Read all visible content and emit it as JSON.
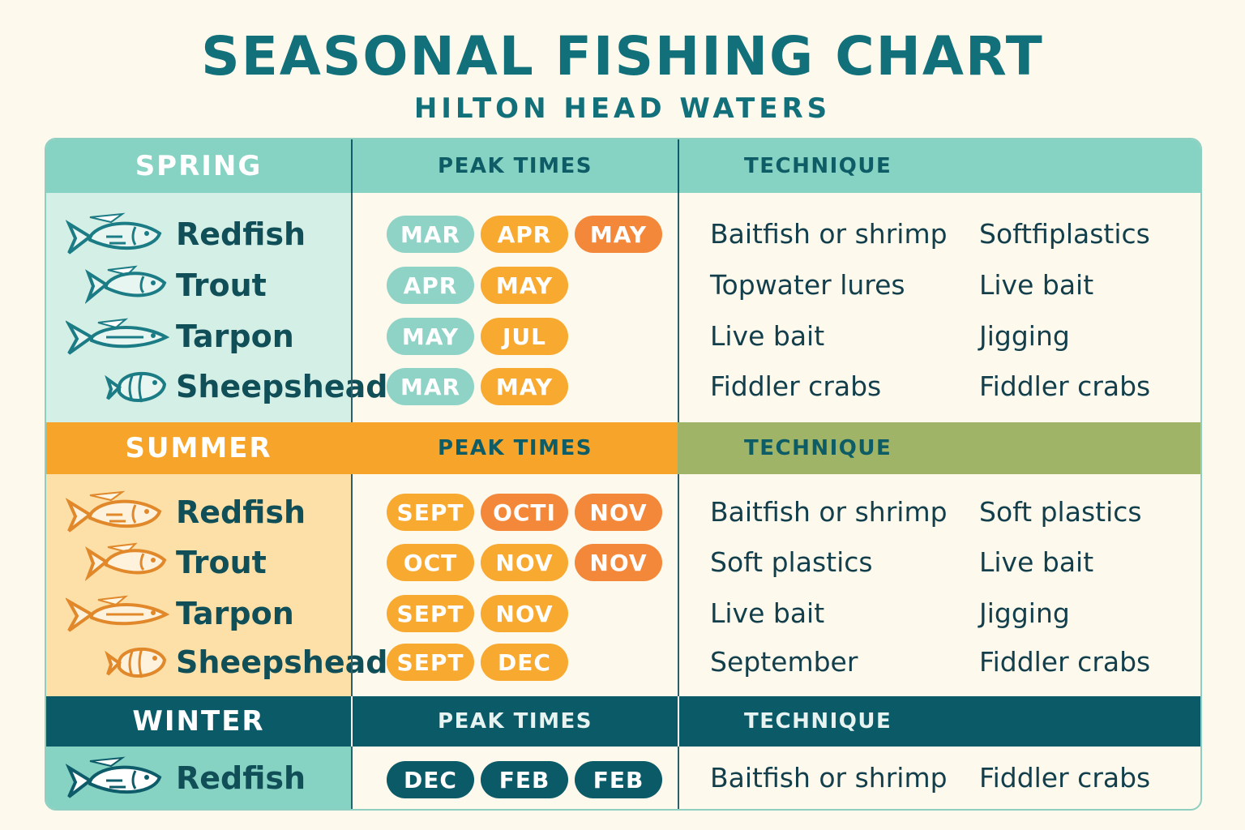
{
  "title": "SEASONAL FISHING CHART",
  "subtitle": "HILTON HEAD WATERS",
  "colors": {
    "spring_header": "#86d2c3",
    "spring_fish_bg": "#d4efe6",
    "summer_header": "#f7a52a",
    "summer_fish_bg": "#fde0a8",
    "summer_technique_header": "#9fb466",
    "winter_header": "#0b5a68",
    "winter_fish_bg": "#86d2c3",
    "pill_teal": "#8fd3c7",
    "pill_orange": "#f8a930",
    "pill_dark_orange": "#f3873a",
    "pill_navy": "#0b5a68"
  },
  "sections": [
    {
      "season": "SPRING",
      "peak_header": "PEAK TIMES",
      "technique_header": "TECHNIQUE",
      "rows": [
        {
          "fish": "Redfish",
          "icon": "redfish-icon",
          "months": [
            "MAR",
            "APR",
            "MAY"
          ],
          "month_colors": [
            "teal",
            "orange",
            "dkorange"
          ],
          "technique_1": "Baitfish or shrimp",
          "technique_2": "Softfiplastics"
        },
        {
          "fish": "Trout",
          "icon": "trout-icon",
          "months": [
            "APR",
            "MAY"
          ],
          "month_colors": [
            "teal",
            "orange"
          ],
          "technique_1": "Topwater lures",
          "technique_2": "Live bait"
        },
        {
          "fish": "Tarpon",
          "icon": "tarpon-icon",
          "months": [
            "MAY",
            "JUL"
          ],
          "month_colors": [
            "teal",
            "orange"
          ],
          "technique_1": "Live bait",
          "technique_2": "Jigging"
        },
        {
          "fish": "Sheepshead",
          "icon": "sheepshead-icon",
          "months": [
            "MAR",
            "MAY"
          ],
          "month_colors": [
            "teal",
            "orange"
          ],
          "technique_1": "Fiddler crabs",
          "technique_2": "Fiddler crabs"
        }
      ]
    },
    {
      "season": "SUMMER",
      "peak_header": "PEAK TIMES",
      "technique_header": "TECHNIQUE",
      "rows": [
        {
          "fish": "Redfish",
          "icon": "redfish-icon",
          "months": [
            "SEPT",
            "OCTI",
            "NOV"
          ],
          "month_colors": [
            "orange",
            "dkorange",
            "dkorange"
          ],
          "technique_1": "Baitfish or shrimp",
          "technique_2": "Soft plastics"
        },
        {
          "fish": "Trout",
          "icon": "trout-icon",
          "months": [
            "OCT",
            "NOV",
            "NOV"
          ],
          "month_colors": [
            "orange",
            "orange",
            "dkorange"
          ],
          "technique_1": "Soft plastics",
          "technique_2": "Live bait"
        },
        {
          "fish": "Tarpon",
          "icon": "tarpon-icon",
          "months": [
            "SEPT",
            "NOV"
          ],
          "month_colors": [
            "orange",
            "orange"
          ],
          "technique_1": "Live bait",
          "technique_2": "Jigging"
        },
        {
          "fish": "Sheepshead",
          "icon": "sheepshead-icon",
          "months": [
            "SEPT",
            "DEC"
          ],
          "month_colors": [
            "orange",
            "orange"
          ],
          "technique_1": "September",
          "technique_2": "Fiddler crabs"
        }
      ]
    },
    {
      "season": "WINTER",
      "peak_header": "PEAK TIMES",
      "technique_header": "TECHNIQUE",
      "rows": [
        {
          "fish": "Redfish",
          "icon": "redfish-icon",
          "months": [
            "DEC",
            "FEB",
            "FEB"
          ],
          "month_colors": [
            "navy",
            "navy",
            "navy"
          ],
          "technique_1": "Baitfish or shrimp",
          "technique_2": "Fiddler crabs"
        }
      ]
    }
  ]
}
